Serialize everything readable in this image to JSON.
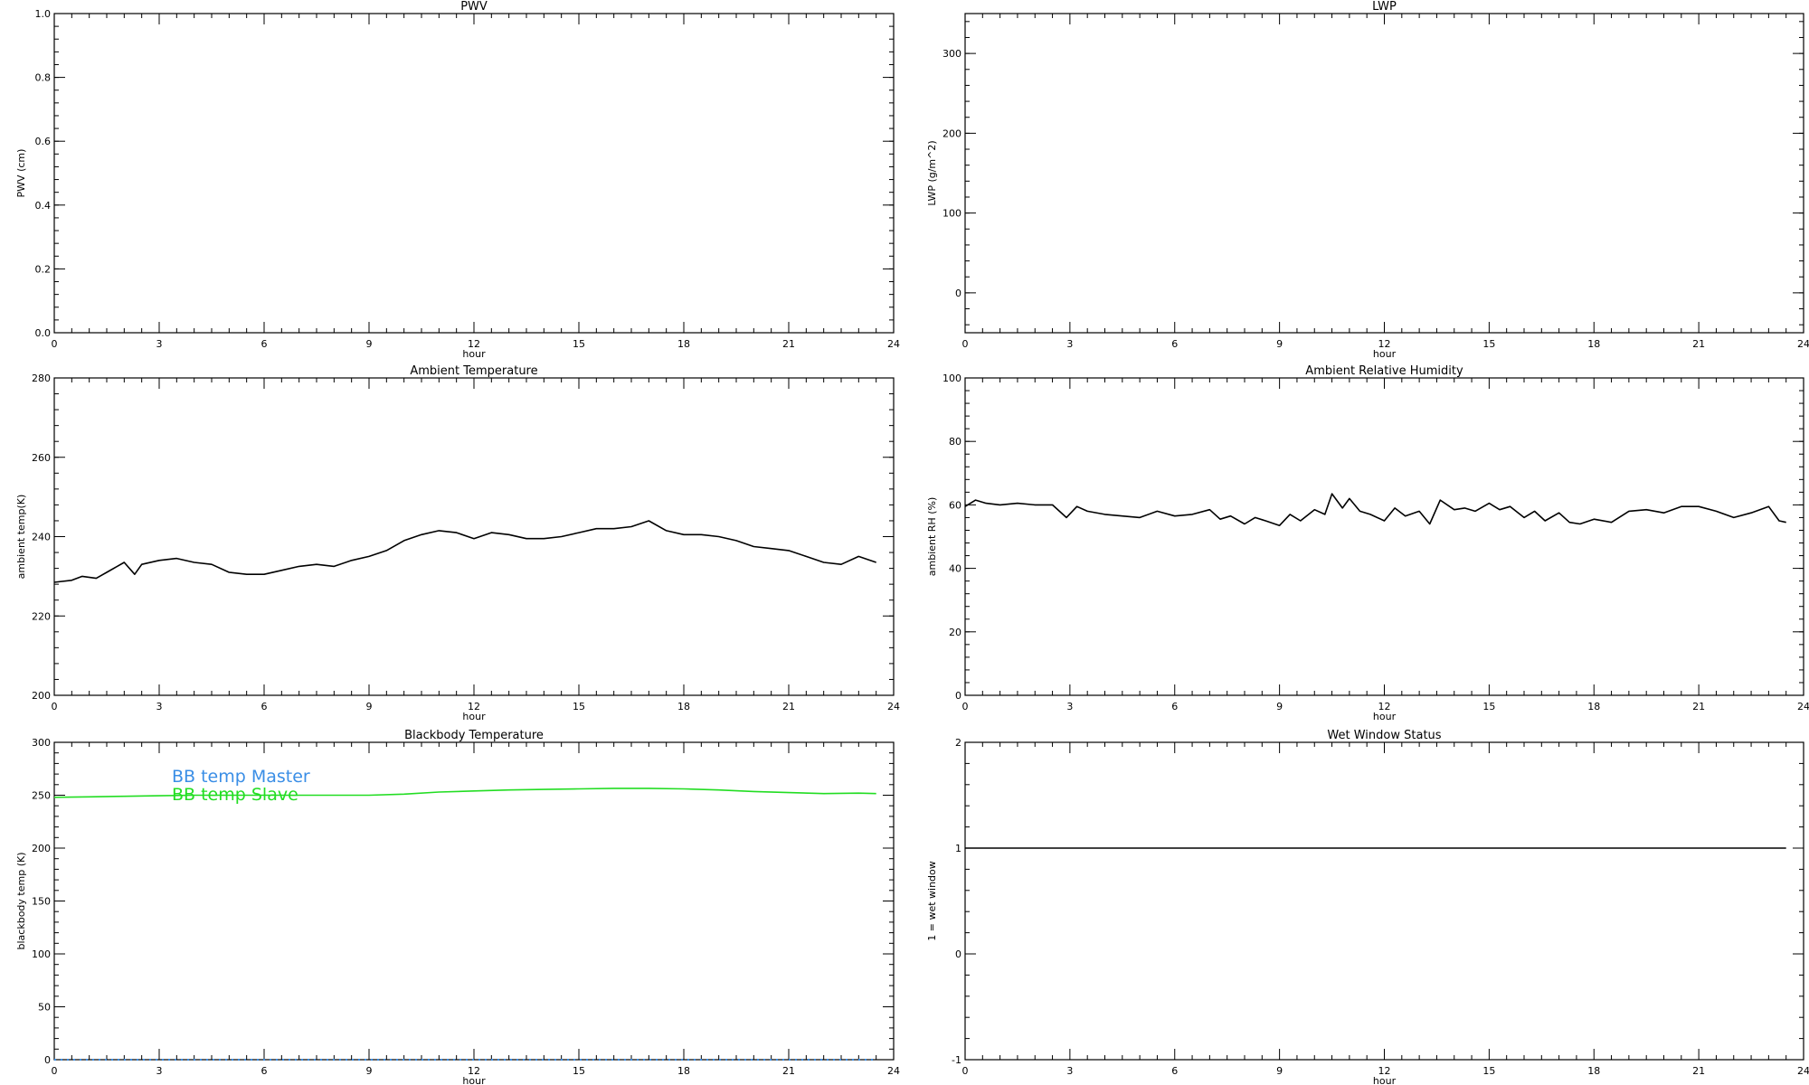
{
  "chart_data": [
    {
      "type": "line",
      "title": "PWV",
      "xlabel": "hour",
      "ylabel": "PWV (cm)",
      "xlim": [
        0,
        24
      ],
      "ylim": [
        0,
        1.0
      ],
      "xticks": [
        0,
        3,
        6,
        9,
        12,
        15,
        18,
        21,
        24
      ],
      "xtick_labels": [
        "0",
        "3",
        "6",
        "9",
        "12",
        "15",
        "18",
        "21",
        "24"
      ],
      "yticks": [
        0,
        0.2,
        0.4,
        0.6,
        0.8,
        1.0
      ],
      "ytick_labels": [
        "0.0",
        "0.2",
        "0.4",
        "0.6",
        "0.8",
        "1.0"
      ],
      "grid": false,
      "series": []
    },
    {
      "type": "line",
      "title": "LWP",
      "xlabel": "hour",
      "ylabel": "LWP (g/m^2)",
      "xlim": [
        0,
        24
      ],
      "ylim": [
        -50,
        350
      ],
      "xticks": [
        0,
        3,
        6,
        9,
        12,
        15,
        18,
        21,
        24
      ],
      "xtick_labels": [
        "0",
        "3",
        "6",
        "9",
        "12",
        "15",
        "18",
        "21",
        "24"
      ],
      "yticks": [
        0,
        100,
        200,
        300
      ],
      "ytick_labels": [
        "0",
        "100",
        "200",
        "300"
      ],
      "grid": false,
      "series": []
    },
    {
      "type": "line",
      "title": "Ambient Temperature",
      "xlabel": "hour",
      "ylabel": "ambient temp(K)",
      "xlim": [
        0,
        24
      ],
      "ylim": [
        200,
        280
      ],
      "xticks": [
        0,
        3,
        6,
        9,
        12,
        15,
        18,
        21,
        24
      ],
      "xtick_labels": [
        "0",
        "3",
        "6",
        "9",
        "12",
        "15",
        "18",
        "21",
        "24"
      ],
      "yticks": [
        200,
        220,
        240,
        260,
        280
      ],
      "ytick_labels": [
        "200",
        "220",
        "240",
        "260",
        "280"
      ],
      "grid": false,
      "series": [
        {
          "color": "#000000",
          "x": [
            0,
            0.5,
            0.8,
            1.2,
            1.5,
            2.0,
            2.3,
            2.5,
            3.0,
            3.5,
            4.0,
            4.5,
            5.0,
            5.5,
            6.0,
            6.5,
            7.0,
            7.5,
            8.0,
            8.5,
            9.0,
            9.5,
            10.0,
            10.5,
            11.0,
            11.5,
            12.0,
            12.5,
            13.0,
            13.5,
            14.0,
            14.5,
            15.0,
            15.5,
            16.0,
            16.5,
            17.0,
            17.5,
            18.0,
            18.5,
            19.0,
            19.5,
            20.0,
            20.5,
            21.0,
            21.5,
            22.0,
            22.5,
            23.0,
            23.5
          ],
          "y": [
            228.5,
            229.0,
            230.0,
            229.5,
            231.0,
            233.5,
            230.5,
            233.0,
            234.0,
            234.5,
            233.5,
            233.0,
            231.0,
            230.5,
            230.5,
            231.5,
            232.5,
            233.0,
            232.5,
            234.0,
            235.0,
            236.5,
            239.0,
            240.5,
            241.5,
            241.0,
            239.5,
            241.0,
            240.5,
            239.5,
            239.5,
            240.0,
            241.0,
            242.0,
            242.0,
            242.5,
            244.0,
            241.5,
            240.5,
            240.5,
            240.0,
            239.0,
            237.5,
            237.0,
            236.5,
            235.0,
            233.5,
            233.0,
            235.0,
            233.5
          ]
        }
      ]
    },
    {
      "type": "line",
      "title": "Ambient Relative Humidity",
      "xlabel": "hour",
      "ylabel": "ambient RH (%)",
      "xlim": [
        0,
        24
      ],
      "ylim": [
        0,
        100
      ],
      "xticks": [
        0,
        3,
        6,
        9,
        12,
        15,
        18,
        21,
        24
      ],
      "xtick_labels": [
        "0",
        "3",
        "6",
        "9",
        "12",
        "15",
        "18",
        "21",
        "24"
      ],
      "yticks": [
        0,
        20,
        40,
        60,
        80,
        100
      ],
      "ytick_labels": [
        "0",
        "20",
        "40",
        "60",
        "80",
        "100"
      ],
      "grid": false,
      "series": [
        {
          "color": "#000000",
          "x": [
            0,
            0.3,
            0.6,
            1.0,
            1.5,
            2.0,
            2.5,
            2.9,
            3.2,
            3.5,
            4.0,
            4.5,
            5.0,
            5.5,
            6.0,
            6.5,
            7.0,
            7.3,
            7.6,
            8.0,
            8.3,
            8.6,
            9.0,
            9.3,
            9.6,
            10.0,
            10.3,
            10.5,
            10.8,
            11.0,
            11.3,
            11.6,
            12.0,
            12.3,
            12.6,
            13.0,
            13.3,
            13.6,
            14.0,
            14.3,
            14.6,
            15.0,
            15.3,
            15.6,
            16.0,
            16.3,
            16.6,
            17.0,
            17.3,
            17.6,
            18.0,
            18.5,
            19.0,
            19.5,
            20.0,
            20.5,
            21.0,
            21.5,
            22.0,
            22.5,
            23.0,
            23.3,
            23.5
          ],
          "y": [
            59.5,
            61.5,
            60.5,
            60.0,
            60.5,
            60.0,
            60.0,
            56.0,
            59.5,
            58.0,
            57.0,
            56.5,
            56.0,
            58.0,
            56.5,
            57.0,
            58.5,
            55.5,
            56.5,
            54.0,
            56.0,
            55.0,
            53.5,
            57.0,
            55.0,
            58.5,
            57.0,
            63.5,
            59.0,
            62.0,
            58.0,
            57.0,
            55.0,
            59.0,
            56.5,
            58.0,
            54.0,
            61.5,
            58.5,
            59.0,
            58.0,
            60.5,
            58.5,
            59.5,
            56.0,
            58.0,
            55.0,
            57.5,
            54.5,
            54.0,
            55.5,
            54.5,
            58.0,
            58.5,
            57.5,
            59.5,
            59.5,
            58.0,
            56.0,
            57.5,
            59.5,
            55.0,
            54.5
          ]
        }
      ]
    },
    {
      "type": "line",
      "title": "Blackbody Temperature",
      "xlabel": "hour",
      "ylabel": "blackbody temp (K)",
      "xlim": [
        0,
        24
      ],
      "ylim": [
        0,
        300
      ],
      "xticks": [
        0,
        3,
        6,
        9,
        12,
        15,
        18,
        21,
        24
      ],
      "xtick_labels": [
        "0",
        "3",
        "6",
        "9",
        "12",
        "15",
        "18",
        "21",
        "24"
      ],
      "yticks": [
        0,
        50,
        100,
        150,
        200,
        250,
        300
      ],
      "ytick_labels": [
        "0",
        "50",
        "100",
        "150",
        "200",
        "250",
        "300"
      ],
      "grid": false,
      "legend_placement": "top-left",
      "series": [
        {
          "name": "BB temp Master",
          "color": "#3a8ee6",
          "style": "dotted",
          "x": [
            0,
            3,
            6,
            9,
            12,
            15,
            18,
            21,
            23.5
          ],
          "y": [
            0,
            0,
            0,
            0,
            0,
            0,
            0,
            0,
            0
          ]
        },
        {
          "name": "BB temp Slave",
          "color": "#22dd22",
          "x": [
            0,
            1,
            2,
            3,
            4,
            5,
            6,
            7,
            8,
            9,
            10,
            11,
            12,
            13,
            14,
            15,
            16,
            17,
            18,
            19,
            20,
            21,
            22,
            23,
            23.5
          ],
          "y": [
            248,
            248.5,
            249,
            249.5,
            250,
            250,
            250,
            250,
            250,
            250,
            251,
            253,
            254,
            255,
            255.5,
            256,
            256.5,
            256.5,
            256,
            255,
            253.5,
            252.5,
            251.5,
            252,
            251.5
          ]
        }
      ]
    },
    {
      "type": "line",
      "title": "Wet Window Status",
      "xlabel": "hour",
      "ylabel": "1 = wet window",
      "xlim": [
        0,
        24
      ],
      "ylim": [
        -1,
        2
      ],
      "xticks": [
        0,
        3,
        6,
        9,
        12,
        15,
        18,
        21,
        24
      ],
      "xtick_labels": [
        "0",
        "3",
        "6",
        "9",
        "12",
        "15",
        "18",
        "21",
        "24"
      ],
      "yticks": [
        -1,
        0,
        1,
        2
      ],
      "ytick_labels": [
        "-1",
        "0",
        "1",
        "2"
      ],
      "grid": false,
      "series": [
        {
          "color": "#000000",
          "x": [
            0,
            23.5
          ],
          "y": [
            1,
            1
          ]
        }
      ]
    }
  ]
}
